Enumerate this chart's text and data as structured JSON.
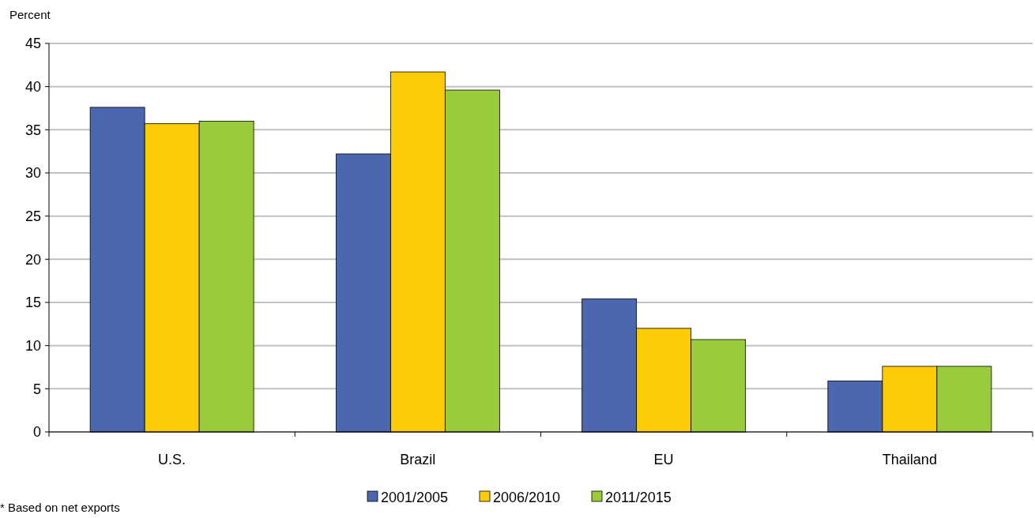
{
  "chart_data": {
    "type": "bar",
    "ylabel": "Percent",
    "categories": [
      "U.S.",
      "Brazil",
      "EU",
      "Thailand"
    ],
    "series": [
      {
        "name": "2001/2005",
        "color": "#4a67af",
        "values": [
          37.6,
          32.2,
          15.4,
          5.9
        ]
      },
      {
        "name": "2006/2010",
        "color": "#fccb06",
        "values": [
          35.7,
          41.7,
          12.0,
          7.6
        ]
      },
      {
        "name": "2011/2015",
        "color": "#9acb3c",
        "values": [
          36.0,
          39.6,
          10.7,
          7.6
        ]
      }
    ],
    "ylim": [
      0,
      45
    ],
    "yticks": [
      0,
      5,
      10,
      15,
      20,
      25,
      30,
      35,
      40,
      45
    ],
    "grid": "y",
    "legend": "bottom",
    "annotations": [
      "* Based on net exports"
    ]
  }
}
